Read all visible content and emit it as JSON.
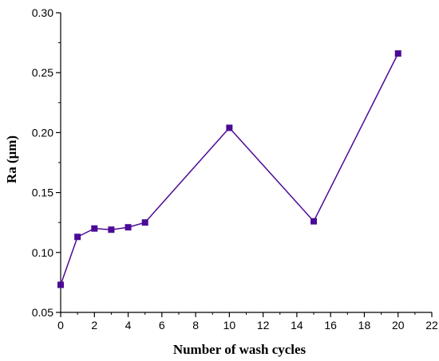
{
  "chart_data": {
    "type": "line",
    "title": "",
    "xlabel": "Number of wash cycles",
    "ylabel": "Ra (μm)",
    "xlim": [
      0,
      22
    ],
    "ylim": [
      0.05,
      0.3
    ],
    "x_ticks": [
      0,
      2,
      4,
      6,
      8,
      10,
      12,
      14,
      16,
      18,
      20,
      22
    ],
    "y_ticks": [
      0.05,
      0.1,
      0.15,
      0.2,
      0.25,
      0.3
    ],
    "x_tick_labels": [
      "0",
      "2",
      "4",
      "6",
      "8",
      "10",
      "12",
      "14",
      "16",
      "18",
      "20",
      "22"
    ],
    "y_tick_labels": [
      "0.05",
      "0.10",
      "0.15",
      "0.20",
      "0.25",
      "0.30"
    ],
    "grid": false,
    "legend": "none",
    "series": [
      {
        "color": "#4b0a96",
        "marker": "square",
        "x": [
          0,
          1,
          2,
          3,
          4,
          5,
          10,
          15,
          20
        ],
        "y": [
          0.073,
          0.113,
          0.12,
          0.119,
          0.121,
          0.125,
          0.204,
          0.126,
          0.266
        ]
      }
    ]
  }
}
